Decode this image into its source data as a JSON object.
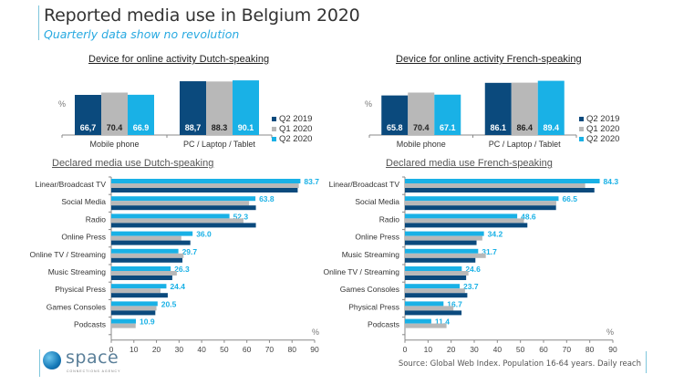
{
  "header": {
    "title": "Reported media use in Belgium 2020",
    "subtitle": "Quarterly data show no revolution"
  },
  "colors": {
    "q2_2019": "#0b4a7d",
    "q1_2020": "#b8b8b8",
    "q2_2020": "#19b1e6",
    "accent": "#27a9e1"
  },
  "footer": {
    "source": "Source: Global Web Index. Population 16-64 years. Daily reach",
    "logo_name": "space",
    "logo_tagline": "CONNECTIONS AGENCY"
  },
  "chart_data": [
    {
      "id": "device-dutch",
      "type": "bar",
      "orientation": "vertical",
      "title": "Device for online activity Dutch-speaking",
      "ylabel": "%",
      "categories": [
        "Mobile phone",
        "PC / Laptop / Tablet"
      ],
      "series": [
        {
          "name": "Q2 2019",
          "values": [
            66.7,
            88.7
          ],
          "labels": [
            "66,7",
            "88,7"
          ]
        },
        {
          "name": "Q1 2020",
          "values": [
            70.4,
            88.3
          ],
          "labels": [
            "70.4",
            "88.3"
          ]
        },
        {
          "name": "Q2 2020",
          "values": [
            66.9,
            90.1
          ],
          "labels": [
            "66.9",
            "90.1"
          ]
        }
      ],
      "legend": [
        "Q2 2019",
        "Q1 2020",
        "Q2 2020"
      ],
      "legend_position": "right",
      "ylim": [
        0,
        95
      ]
    },
    {
      "id": "device-french",
      "type": "bar",
      "orientation": "vertical",
      "title": "Device for online activity French-speaking",
      "ylabel": "%",
      "categories": [
        "Mobile phone",
        "PC / Laptop / Tablet"
      ],
      "series": [
        {
          "name": "Q2 2019",
          "values": [
            65.8,
            86.1
          ],
          "labels": [
            "65.8",
            "86.1"
          ]
        },
        {
          "name": "Q1 2020",
          "values": [
            70.4,
            86.4
          ],
          "labels": [
            "70.4",
            "86.4"
          ]
        },
        {
          "name": "Q2 2020",
          "values": [
            67.1,
            89.4
          ],
          "labels": [
            "67.1",
            "89.4"
          ]
        }
      ],
      "legend": [
        "Q2 2019",
        "Q1 2020",
        "Q2 2020"
      ],
      "legend_position": "right",
      "ylim": [
        0,
        95
      ]
    },
    {
      "id": "media-dutch",
      "type": "bar",
      "orientation": "horizontal",
      "title": "Declared media use Dutch-speaking",
      "xlabel": "%",
      "xlim": [
        0,
        90
      ],
      "xticks": [
        "0",
        "10",
        "20",
        "30",
        "40",
        "50",
        "60",
        "70",
        "80",
        "90"
      ],
      "categories": [
        "Linear/Broadcast TV",
        "Social Media",
        "Radio",
        "Online Press",
        "Online TV / Streaming",
        "Music Streaming",
        "Physical Press",
        "Games Consoles",
        "Podcasts"
      ],
      "series": [
        {
          "name": "Q2 2020",
          "values": [
            83.7,
            63.8,
            52.3,
            36.0,
            29.7,
            26.3,
            24.4,
            20.5,
            10.9
          ],
          "labels": [
            "83.7",
            "63.8",
            "52.3",
            "36.0",
            "29.7",
            "26.3",
            "24.4",
            "20.5",
            "10.9"
          ]
        },
        {
          "name": "Q1 2020",
          "values": [
            83.0,
            61.0,
            58.5,
            31.0,
            32.0,
            29.0,
            21.8,
            20.0,
            10.8
          ]
        },
        {
          "name": "Q2 2019",
          "values": [
            82.5,
            64.0,
            64.0,
            35.0,
            31.5,
            27.0,
            25.0,
            19.5,
            null
          ]
        }
      ]
    },
    {
      "id": "media-french",
      "type": "bar",
      "orientation": "horizontal",
      "title": "Declared media use French-speaking",
      "xlabel": "%",
      "xlim": [
        0,
        90
      ],
      "xticks": [
        "0",
        "10",
        "20",
        "30",
        "40",
        "50",
        "60",
        "70",
        "80",
        "90"
      ],
      "categories": [
        "Linear/Broadcast TV",
        "Social Media",
        "Radio",
        "Online Press",
        "Music Streaming",
        "Online TV / Streaming",
        "Games Consoles",
        "Physical Press",
        "Podcasts"
      ],
      "series": [
        {
          "name": "Q2 2020",
          "values": [
            84.3,
            66.5,
            48.6,
            34.2,
            31.7,
            24.6,
            23.7,
            16.7,
            11.4
          ],
          "labels": [
            "84.3",
            "66.5",
            "48.6",
            "34.2",
            "31.7",
            "24.6",
            "23.7",
            "16.7",
            "11.4"
          ]
        },
        {
          "name": "Q1 2020",
          "values": [
            78.0,
            65.5,
            51.5,
            33.5,
            35.0,
            27.5,
            26.0,
            21.0,
            18.0
          ]
        },
        {
          "name": "Q2 2019",
          "values": [
            82.0,
            65.4,
            53.0,
            31.0,
            30.5,
            26.5,
            27.0,
            24.5,
            null
          ]
        }
      ]
    }
  ]
}
